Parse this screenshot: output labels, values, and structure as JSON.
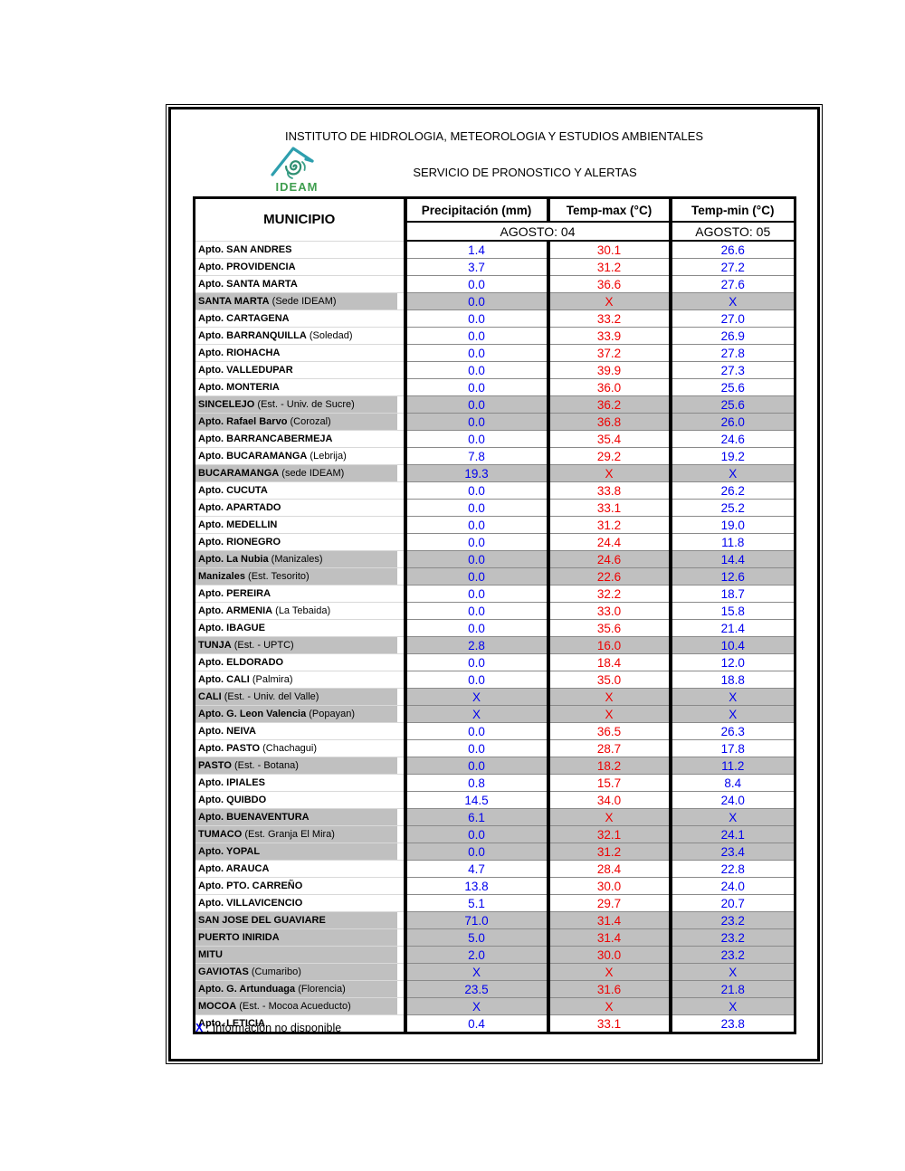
{
  "header": {
    "institute": "INSTITUTO DE HIDROLOGIA, METEOROLOGIA Y ESTUDIOS AMBIENTALES",
    "service": "SERVICIO DE PRONOSTICO Y ALERTAS",
    "logo_text": "IDEAM"
  },
  "table": {
    "columns": {
      "municipio": "MUNICIPIO",
      "precipitation": "Precipitación (mm)",
      "temp_max": "Temp-max (°C)",
      "temp_min": "Temp-min (°C)"
    },
    "period": {
      "agosto04": "AGOSTO: 04",
      "agosto05": "AGOSTO: 05"
    },
    "colors": {
      "precipitation_value": "#0000ee",
      "temp_max_value": "#ee0000",
      "temp_min_value": "#0000ee",
      "shaded_row": "#c0c0c0",
      "logo_teal": "#2e9fae",
      "logo_green": "#3f9e4f"
    },
    "rows": [
      {
        "name": "Apto. SAN ANDRES",
        "suffix": "",
        "shaded": false,
        "precip": "1.4",
        "tmax": "30.1",
        "tmin": "26.6"
      },
      {
        "name": "Apto. PROVIDENCIA",
        "suffix": "",
        "shaded": false,
        "precip": "3.7",
        "tmax": "31.2",
        "tmin": "27.2"
      },
      {
        "name": "Apto. SANTA MARTA",
        "suffix": "",
        "shaded": false,
        "precip": "0.0",
        "tmax": "36.6",
        "tmin": "27.6"
      },
      {
        "name": "SANTA MARTA",
        "suffix": "(Sede IDEAM)",
        "shaded": true,
        "precip": "0.0",
        "tmax": "X",
        "tmin": "X"
      },
      {
        "name": "Apto. CARTAGENA",
        "suffix": "",
        "shaded": false,
        "precip": "0.0",
        "tmax": "33.2",
        "tmin": "27.0"
      },
      {
        "name": "Apto. BARRANQUILLA",
        "suffix": "(Soledad)",
        "shaded": false,
        "precip": "0.0",
        "tmax": "33.9",
        "tmin": "26.9"
      },
      {
        "name": "Apto. RIOHACHA",
        "suffix": "",
        "shaded": false,
        "precip": "0.0",
        "tmax": "37.2",
        "tmin": "27.8"
      },
      {
        "name": "Apto. VALLEDUPAR",
        "suffix": "",
        "shaded": false,
        "precip": "0.0",
        "tmax": "39.9",
        "tmin": "27.3"
      },
      {
        "name": "Apto. MONTERIA",
        "suffix": "",
        "shaded": false,
        "precip": "0.0",
        "tmax": "36.0",
        "tmin": "25.6"
      },
      {
        "name": "SINCELEJO",
        "suffix": "(Est. - Univ. de Sucre)",
        "shaded": true,
        "precip": "0.0",
        "tmax": "36.2",
        "tmin": "25.6"
      },
      {
        "name": "Apto. Rafael Barvo",
        "suffix": "(Corozal)",
        "shaded": true,
        "precip": "0.0",
        "tmax": "36.8",
        "tmin": "26.0"
      },
      {
        "name": "Apto. BARRANCABERMEJA",
        "suffix": "",
        "shaded": false,
        "precip": "0.0",
        "tmax": "35.4",
        "tmin": "24.6"
      },
      {
        "name": "Apto. BUCARAMANGA",
        "suffix": "(Lebrija)",
        "shaded": false,
        "precip": "7.8",
        "tmax": "29.2",
        "tmin": "19.2"
      },
      {
        "name": "BUCARAMANGA",
        "suffix": "(sede IDEAM)",
        "shaded": true,
        "precip": "19.3",
        "tmax": "X",
        "tmin": "X"
      },
      {
        "name": "Apto. CUCUTA",
        "suffix": "",
        "shaded": false,
        "precip": "0.0",
        "tmax": "33.8",
        "tmin": "26.2"
      },
      {
        "name": "Apto. APARTADO",
        "suffix": "",
        "shaded": false,
        "precip": "0.0",
        "tmax": "33.1",
        "tmin": "25.2"
      },
      {
        "name": "Apto. MEDELLIN",
        "suffix": "",
        "shaded": false,
        "precip": "0.0",
        "tmax": "31.2",
        "tmin": "19.0"
      },
      {
        "name": "Apto. RIONEGRO",
        "suffix": "",
        "shaded": false,
        "precip": "0.0",
        "tmax": "24.4",
        "tmin": "11.8"
      },
      {
        "name": "Apto. La Nubia",
        "suffix": "(Manizales)",
        "shaded": true,
        "precip": "0.0",
        "tmax": "24.6",
        "tmin": "14.4"
      },
      {
        "name": "Manizales",
        "suffix": "(Est. Tesorito)",
        "shaded": true,
        "precip": "0.0",
        "tmax": "22.6",
        "tmin": "12.6"
      },
      {
        "name": "Apto. PEREIRA",
        "suffix": "",
        "shaded": false,
        "precip": "0.0",
        "tmax": "32.2",
        "tmin": "18.7"
      },
      {
        "name": "Apto. ARMENIA",
        "suffix": "(La Tebaida)",
        "shaded": false,
        "precip": "0.0",
        "tmax": "33.0",
        "tmin": "15.8"
      },
      {
        "name": "Apto. IBAGUE",
        "suffix": "",
        "shaded": false,
        "precip": "0.0",
        "tmax": "35.6",
        "tmin": "21.4"
      },
      {
        "name": "TUNJA",
        "suffix": "(Est. - UPTC)",
        "shaded": true,
        "precip": "2.8",
        "tmax": "16.0",
        "tmin": "10.4"
      },
      {
        "name": "Apto. ELDORADO",
        "suffix": "",
        "shaded": false,
        "precip": "0.0",
        "tmax": "18.4",
        "tmin": "12.0"
      },
      {
        "name": "Apto. CALI",
        "suffix": "(Palmira)",
        "shaded": false,
        "precip": "0.0",
        "tmax": "35.0",
        "tmin": "18.8"
      },
      {
        "name": "CALI",
        "suffix": "(Est. - Univ. del Valle)",
        "shaded": true,
        "precip": "X",
        "tmax": "X",
        "tmin": "X"
      },
      {
        "name": "Apto. G. Leon Valencia",
        "suffix": "(Popayan)",
        "shaded": true,
        "precip": "X",
        "tmax": "X",
        "tmin": "X"
      },
      {
        "name": "Apto. NEIVA",
        "suffix": "",
        "shaded": false,
        "precip": "0.0",
        "tmax": "36.5",
        "tmin": "26.3"
      },
      {
        "name": "Apto. PASTO",
        "suffix": "(Chachagui)",
        "shaded": false,
        "precip": "0.0",
        "tmax": "28.7",
        "tmin": "17.8"
      },
      {
        "name": "PASTO",
        "suffix": "(Est. - Botana)",
        "shaded": true,
        "precip": "0.0",
        "tmax": "18.2",
        "tmin": "11.2"
      },
      {
        "name": "Apto. IPIALES",
        "suffix": "",
        "shaded": false,
        "precip": "0.8",
        "tmax": "15.7",
        "tmin": "8.4"
      },
      {
        "name": "Apto. QUIBDO",
        "suffix": "",
        "shaded": false,
        "precip": "14.5",
        "tmax": "34.0",
        "tmin": "24.0"
      },
      {
        "name": "Apto. BUENAVENTURA",
        "suffix": "",
        "shaded": true,
        "precip": "6.1",
        "tmax": "X",
        "tmin": "X"
      },
      {
        "name": "TUMACO",
        "suffix": "(Est. Granja El Mira)",
        "shaded": true,
        "precip": "0.0",
        "tmax": "32.1",
        "tmin": "24.1"
      },
      {
        "name": "Apto. YOPAL",
        "suffix": "",
        "shaded": true,
        "precip": "0.0",
        "tmax": "31.2",
        "tmin": "23.4"
      },
      {
        "name": "Apto. ARAUCA",
        "suffix": "",
        "shaded": false,
        "precip": "4.7",
        "tmax": "28.4",
        "tmin": "22.8"
      },
      {
        "name": "Apto. PTO.  CARREÑO",
        "suffix": "",
        "shaded": false,
        "precip": "13.8",
        "tmax": "30.0",
        "tmin": "24.0"
      },
      {
        "name": "Apto. VILLAVICENCIO",
        "suffix": "",
        "shaded": false,
        "precip": "5.1",
        "tmax": "29.7",
        "tmin": "20.7"
      },
      {
        "name": "SAN JOSE DEL GUAVIARE",
        "suffix": "",
        "shaded": true,
        "precip": "71.0",
        "tmax": "31.4",
        "tmin": "23.2"
      },
      {
        "name": "PUERTO INIRIDA",
        "suffix": "",
        "shaded": true,
        "precip": "5.0",
        "tmax": "31.4",
        "tmin": "23.2"
      },
      {
        "name": "MITU",
        "suffix": "",
        "shaded": true,
        "precip": "2.0",
        "tmax": "30.0",
        "tmin": "23.2"
      },
      {
        "name": "GAVIOTAS",
        "suffix": "(Cumaribo)",
        "shaded": true,
        "precip": "X",
        "tmax": "X",
        "tmin": "X"
      },
      {
        "name": "Apto. G. Artunduaga",
        "suffix": "(Florencia)",
        "shaded": true,
        "precip": "23.5",
        "tmax": "31.6",
        "tmin": "21.8"
      },
      {
        "name": "MOCOA",
        "suffix": "(Est. - Mocoa Acueducto)",
        "shaded": true,
        "precip": "X",
        "tmax": "X",
        "tmin": "X"
      },
      {
        "name": "Apto. LETICIA",
        "suffix": "",
        "shaded": false,
        "precip": "0.4",
        "tmax": "33.1",
        "tmin": "23.8"
      }
    ]
  },
  "footnote": {
    "symbol": "X",
    "text": ": Información no disponible"
  }
}
